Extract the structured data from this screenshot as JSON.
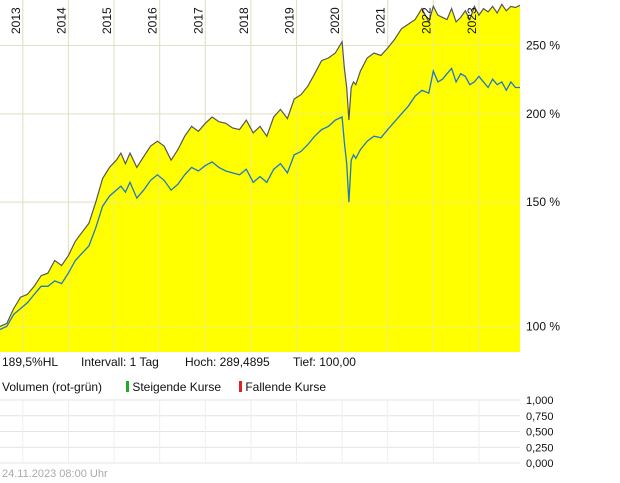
{
  "chart_data": {
    "type": "area",
    "y_scale": "log",
    "x_range": [
      2012.5,
      2023.9
    ],
    "y_range": [
      92,
      290
    ],
    "x_ticks": [
      "2013",
      "2014",
      "2015",
      "2016",
      "2017",
      "2018",
      "2019",
      "2020",
      "2021",
      "2022",
      "2023"
    ],
    "y_ticks": [
      {
        "value": 100,
        "label": "100 %"
      },
      {
        "value": 150,
        "label": "150 %"
      },
      {
        "value": 200,
        "label": "200 %"
      },
      {
        "value": 250,
        "label": "250 %"
      }
    ],
    "grid": true,
    "series": [
      {
        "style": "area",
        "color": "#555555",
        "fill": "#ffff00",
        "x": [
          2012.5,
          2012.65,
          2012.8,
          2012.95,
          2013.1,
          2013.25,
          2013.4,
          2013.55,
          2013.7,
          2013.85,
          2014.0,
          2014.15,
          2014.3,
          2014.45,
          2014.6,
          2014.75,
          2014.9,
          2015.05,
          2015.15,
          2015.25,
          2015.35,
          2015.5,
          2015.65,
          2015.8,
          2015.95,
          2016.1,
          2016.25,
          2016.4,
          2016.55,
          2016.7,
          2016.85,
          2017.0,
          2017.15,
          2017.3,
          2017.45,
          2017.6,
          2017.75,
          2017.9,
          2018.05,
          2018.2,
          2018.35,
          2018.5,
          2018.65,
          2018.8,
          2018.95,
          2019.1,
          2019.25,
          2019.4,
          2019.55,
          2019.7,
          2019.85,
          2020.0,
          2020.05,
          2020.1,
          2020.15,
          2020.2,
          2020.25,
          2020.3,
          2020.4,
          2020.55,
          2020.7,
          2020.85,
          2021.0,
          2021.15,
          2021.3,
          2021.45,
          2021.6,
          2021.75,
          2021.9,
          2022.0,
          2022.1,
          2022.2,
          2022.3,
          2022.4,
          2022.5,
          2022.6,
          2022.7,
          2022.8,
          2022.9,
          2023.0,
          2023.1,
          2023.2,
          2023.3,
          2023.4,
          2023.5,
          2023.6,
          2023.7,
          2023.8,
          2023.9
        ],
        "y": [
          100,
          101,
          106,
          110,
          111,
          114,
          118,
          119,
          124,
          122,
          126,
          132,
          136,
          140,
          150,
          162,
          168,
          172,
          176,
          170,
          176,
          168,
          174,
          180,
          183,
          180,
          172,
          178,
          186,
          192,
          189,
          194,
          198,
          195,
          194,
          191,
          190,
          196,
          188,
          192,
          186,
          198,
          203,
          197,
          210,
          213,
          219,
          228,
          238,
          240,
          244,
          253,
          232,
          218,
          196,
          218,
          222,
          220,
          230,
          240,
          244,
          242,
          248,
          255,
          264,
          268,
          272,
          282,
          270,
          284,
          276,
          274,
          272,
          282,
          270,
          274,
          280,
          272,
          284,
          276,
          282,
          279,
          284,
          278,
          286,
          280,
          284,
          283,
          285
        ]
      },
      {
        "style": "line",
        "color": "#1f78c8",
        "x": [
          2012.5,
          2012.65,
          2012.8,
          2012.95,
          2013.1,
          2013.25,
          2013.4,
          2013.55,
          2013.7,
          2013.85,
          2014.0,
          2014.15,
          2014.3,
          2014.45,
          2014.6,
          2014.75,
          2014.9,
          2015.05,
          2015.15,
          2015.25,
          2015.35,
          2015.5,
          2015.65,
          2015.8,
          2015.95,
          2016.1,
          2016.25,
          2016.4,
          2016.55,
          2016.7,
          2016.85,
          2017.0,
          2017.15,
          2017.3,
          2017.45,
          2017.6,
          2017.75,
          2017.9,
          2018.05,
          2018.2,
          2018.35,
          2018.5,
          2018.65,
          2018.8,
          2018.95,
          2019.1,
          2019.25,
          2019.4,
          2019.55,
          2019.7,
          2019.85,
          2020.0,
          2020.05,
          2020.1,
          2020.15,
          2020.2,
          2020.25,
          2020.3,
          2020.4,
          2020.55,
          2020.7,
          2020.85,
          2021.0,
          2021.15,
          2021.3,
          2021.45,
          2021.6,
          2021.75,
          2021.9,
          2022.0,
          2022.1,
          2022.2,
          2022.3,
          2022.4,
          2022.5,
          2022.6,
          2022.7,
          2022.8,
          2022.9,
          2023.0,
          2023.1,
          2023.2,
          2023.3,
          2023.4,
          2023.5,
          2023.6,
          2023.7,
          2023.8,
          2023.9
        ],
        "y": [
          99,
          100,
          104,
          106,
          108,
          111,
          114,
          114,
          116,
          115,
          119,
          124,
          127,
          130,
          138,
          148,
          153,
          156,
          158,
          155,
          160,
          152,
          156,
          161,
          164,
          161,
          156,
          159,
          164,
          168,
          166,
          169,
          171,
          168,
          166,
          165,
          164,
          167,
          160,
          163,
          160,
          167,
          170,
          165,
          175,
          177,
          181,
          186,
          190,
          192,
          196,
          198,
          182,
          170,
          150,
          172,
          175,
          173,
          178,
          183,
          186,
          185,
          190,
          195,
          200,
          205,
          212,
          216,
          214,
          230,
          222,
          224,
          228,
          232,
          222,
          228,
          226,
          220,
          222,
          226,
          222,
          218,
          224,
          220,
          222,
          216,
          222,
          218,
          218
        ]
      }
    ]
  },
  "info": {
    "performance": "189,5%HL",
    "interval": "Intervall: 1 Tag",
    "high": "Hoch: 289,4895",
    "low": "Tief:  100,00"
  },
  "volume": {
    "title": "Volumen (rot-grün)",
    "rising_label": "Steigende Kurse",
    "falling_label": "Fallende Kurse",
    "rising_color": "#22aa22",
    "falling_color": "#dd2222",
    "y_ticks": [
      "1,000",
      "0,750",
      "0,500",
      "0,250",
      "0,000"
    ]
  },
  "footer": "24.11.2023 08:00 Uhr"
}
